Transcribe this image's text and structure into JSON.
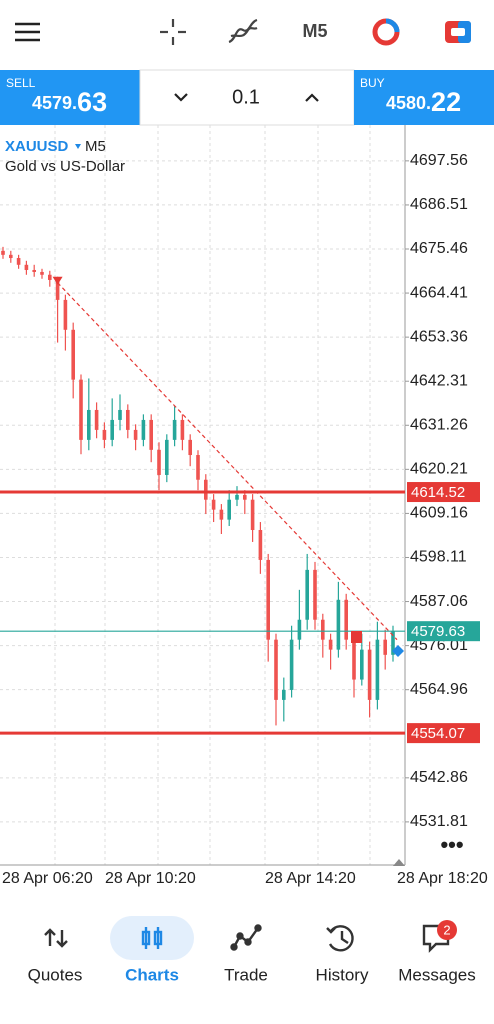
{
  "toolbar": {
    "timeframe": "M5"
  },
  "trade_bar": {
    "sell": {
      "label": "SELL",
      "price_main": "4579.",
      "price_big": "63"
    },
    "lot": "0.1",
    "buy": {
      "label": "BUY",
      "price_main": "4580.",
      "price_big": "22"
    }
  },
  "chart": {
    "type": "candlestick",
    "symbol": "XAUUSD",
    "timeframe": "M5",
    "description": "Gold vs US-Dollar",
    "ylim": [
      4521.0,
      4705.3
    ],
    "yticks": [
      4697.56,
      4686.51,
      4675.46,
      4664.41,
      4653.36,
      4642.31,
      4631.26,
      4620.21,
      4609.16,
      4598.11,
      4587.06,
      4576.01,
      4564.96,
      4542.86,
      4531.81
    ],
    "x_labels": [
      "28 Apr 06:20",
      "28 Apr 10:20",
      "28 Apr 14:20",
      "28 Apr 18:20"
    ],
    "up_color": "#26a69a",
    "down_color": "#ef5350",
    "candles": [
      [
        4675.0,
        4676.0,
        4673.0,
        4674.0
      ],
      [
        4674.0,
        4675.0,
        4672.0,
        4673.2
      ],
      [
        4673.2,
        4674.0,
        4670.5,
        4671.5
      ],
      [
        4671.5,
        4672.5,
        4669.0,
        4670.2
      ],
      [
        4670.2,
        4671.5,
        4668.5,
        4669.7
      ],
      [
        4669.7,
        4670.5,
        4668.0,
        4669.0
      ],
      [
        4669.0,
        4670.0,
        4666.0,
        4667.7
      ],
      [
        4667.7,
        4668.5,
        4652.0,
        4662.7
      ],
      [
        4662.7,
        4664.0,
        4650.0,
        4655.2
      ],
      [
        4655.2,
        4657.0,
        4638.0,
        4642.7
      ],
      [
        4642.7,
        4644.0,
        4624.0,
        4627.6
      ],
      [
        4627.6,
        4643.0,
        4625.0,
        4635.1
      ],
      [
        4635.1,
        4637.0,
        4628.0,
        4630.1
      ],
      [
        4630.1,
        4632.0,
        4625.5,
        4627.6
      ],
      [
        4627.6,
        4638.0,
        4626.0,
        4632.6
      ],
      [
        4632.6,
        4639.0,
        4630.0,
        4635.1
      ],
      [
        4635.1,
        4636.5,
        4628.0,
        4630.1
      ],
      [
        4630.1,
        4631.5,
        4625.0,
        4627.6
      ],
      [
        4627.6,
        4634.0,
        4626.0,
        4632.6
      ],
      [
        4632.6,
        4634.0,
        4622.0,
        4625.1
      ],
      [
        4625.1,
        4627.0,
        4615.0,
        4618.8
      ],
      [
        4618.8,
        4629.0,
        4617.0,
        4627.6
      ],
      [
        4627.6,
        4636.0,
        4626.0,
        4632.6
      ],
      [
        4632.6,
        4634.0,
        4625.0,
        4627.6
      ],
      [
        4627.6,
        4629.0,
        4621.0,
        4623.8
      ],
      [
        4623.8,
        4625.0,
        4615.0,
        4617.6
      ],
      [
        4617.6,
        4619.0,
        4609.0,
        4612.6
      ],
      [
        4612.6,
        4614.0,
        4607.0,
        4610.1
      ],
      [
        4610.1,
        4611.5,
        4604.0,
        4607.6
      ],
      [
        4607.6,
        4615.0,
        4606.0,
        4612.6
      ],
      [
        4612.6,
        4616.0,
        4611.0,
        4613.8
      ],
      [
        4613.8,
        4615.0,
        4609.0,
        4612.6
      ],
      [
        4612.6,
        4614.0,
        4602.0,
        4605.0
      ],
      [
        4605.0,
        4607.0,
        4594.0,
        4597.5
      ],
      [
        4597.5,
        4599.0,
        4572.0,
        4577.5
      ],
      [
        4577.5,
        4579.0,
        4556.0,
        4562.4
      ],
      [
        4562.4,
        4568.0,
        4557.0,
        4564.9
      ],
      [
        4564.9,
        4581.0,
        4563.0,
        4577.5
      ],
      [
        4577.5,
        4590.0,
        4575.0,
        4582.5
      ],
      [
        4582.5,
        4599.0,
        4580.0,
        4595.0
      ],
      [
        4595.0,
        4597.0,
        4580.0,
        4582.5
      ],
      [
        4582.5,
        4584.0,
        4573.0,
        4577.5
      ],
      [
        4577.5,
        4579.0,
        4570.0,
        4575.0
      ],
      [
        4575.0,
        4592.0,
        4573.0,
        4587.5
      ],
      [
        4587.5,
        4589.0,
        4575.0,
        4577.5
      ],
      [
        4577.5,
        4579.0,
        4563.0,
        4567.5
      ],
      [
        4567.5,
        4579.0,
        4566.0,
        4575.0
      ],
      [
        4575.0,
        4577.0,
        4558.0,
        4562.4
      ],
      [
        4562.4,
        4582.0,
        4560.0,
        4577.5
      ],
      [
        4577.5,
        4580.0,
        4570.0,
        4573.7
      ],
      [
        4573.7,
        4581.0,
        4572.0,
        4579.63
      ]
    ],
    "levels": [
      {
        "value": 4614.52,
        "color": "#e53935"
      },
      {
        "value": 4579.63,
        "color": "#26a69a"
      },
      {
        "value": 4554.07,
        "color": "#e53935"
      }
    ],
    "trend_line": [
      4667.0,
      4577.5
    ]
  },
  "nav": {
    "items": [
      "Quotes",
      "Charts",
      "Trade",
      "History",
      "Messages"
    ],
    "badge": "2"
  }
}
